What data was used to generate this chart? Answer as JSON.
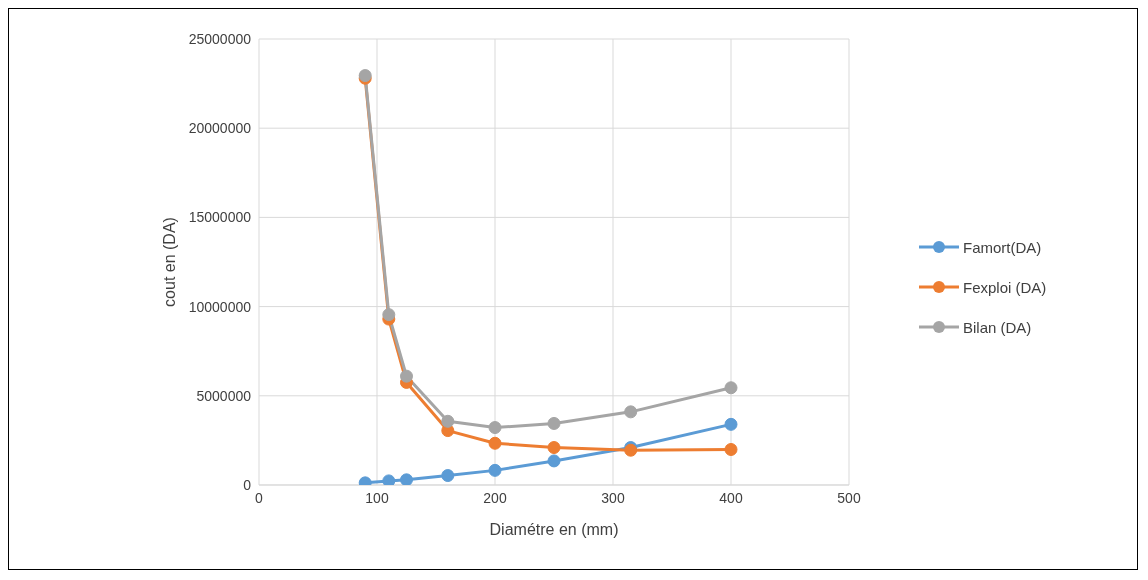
{
  "chart_data": {
    "type": "line",
    "xlabel": "Diamétre en (mm)",
    "ylabel": "cout en (DA)",
    "x": [
      90,
      110,
      125,
      160,
      200,
      250,
      315,
      400
    ],
    "series": [
      {
        "name": "Famort(DA)",
        "color": "#5b9bd5",
        "values": [
          120000,
          230000,
          290000,
          530000,
          820000,
          1350000,
          2100000,
          3400000
        ]
      },
      {
        "name": "Fexploi (DA)",
        "color": "#ed7d31",
        "values": [
          22800000,
          9300000,
          5750000,
          3050000,
          2340000,
          2100000,
          1950000,
          1990000
        ]
      },
      {
        "name": "Bilan (DA)",
        "color": "#a5a5a5",
        "values": [
          22950000,
          9550000,
          6100000,
          3570000,
          3220000,
          3450000,
          4100000,
          5450000
        ]
      }
    ],
    "xlim": [
      0,
      500
    ],
    "xticks": [
      0,
      100,
      200,
      300,
      400,
      500
    ],
    "ylim": [
      0,
      25000000
    ],
    "yticks": [
      0,
      5000000,
      10000000,
      15000000,
      20000000,
      25000000
    ],
    "grid": true,
    "legend": "right",
    "marker": "circle",
    "line_style": "solid"
  }
}
